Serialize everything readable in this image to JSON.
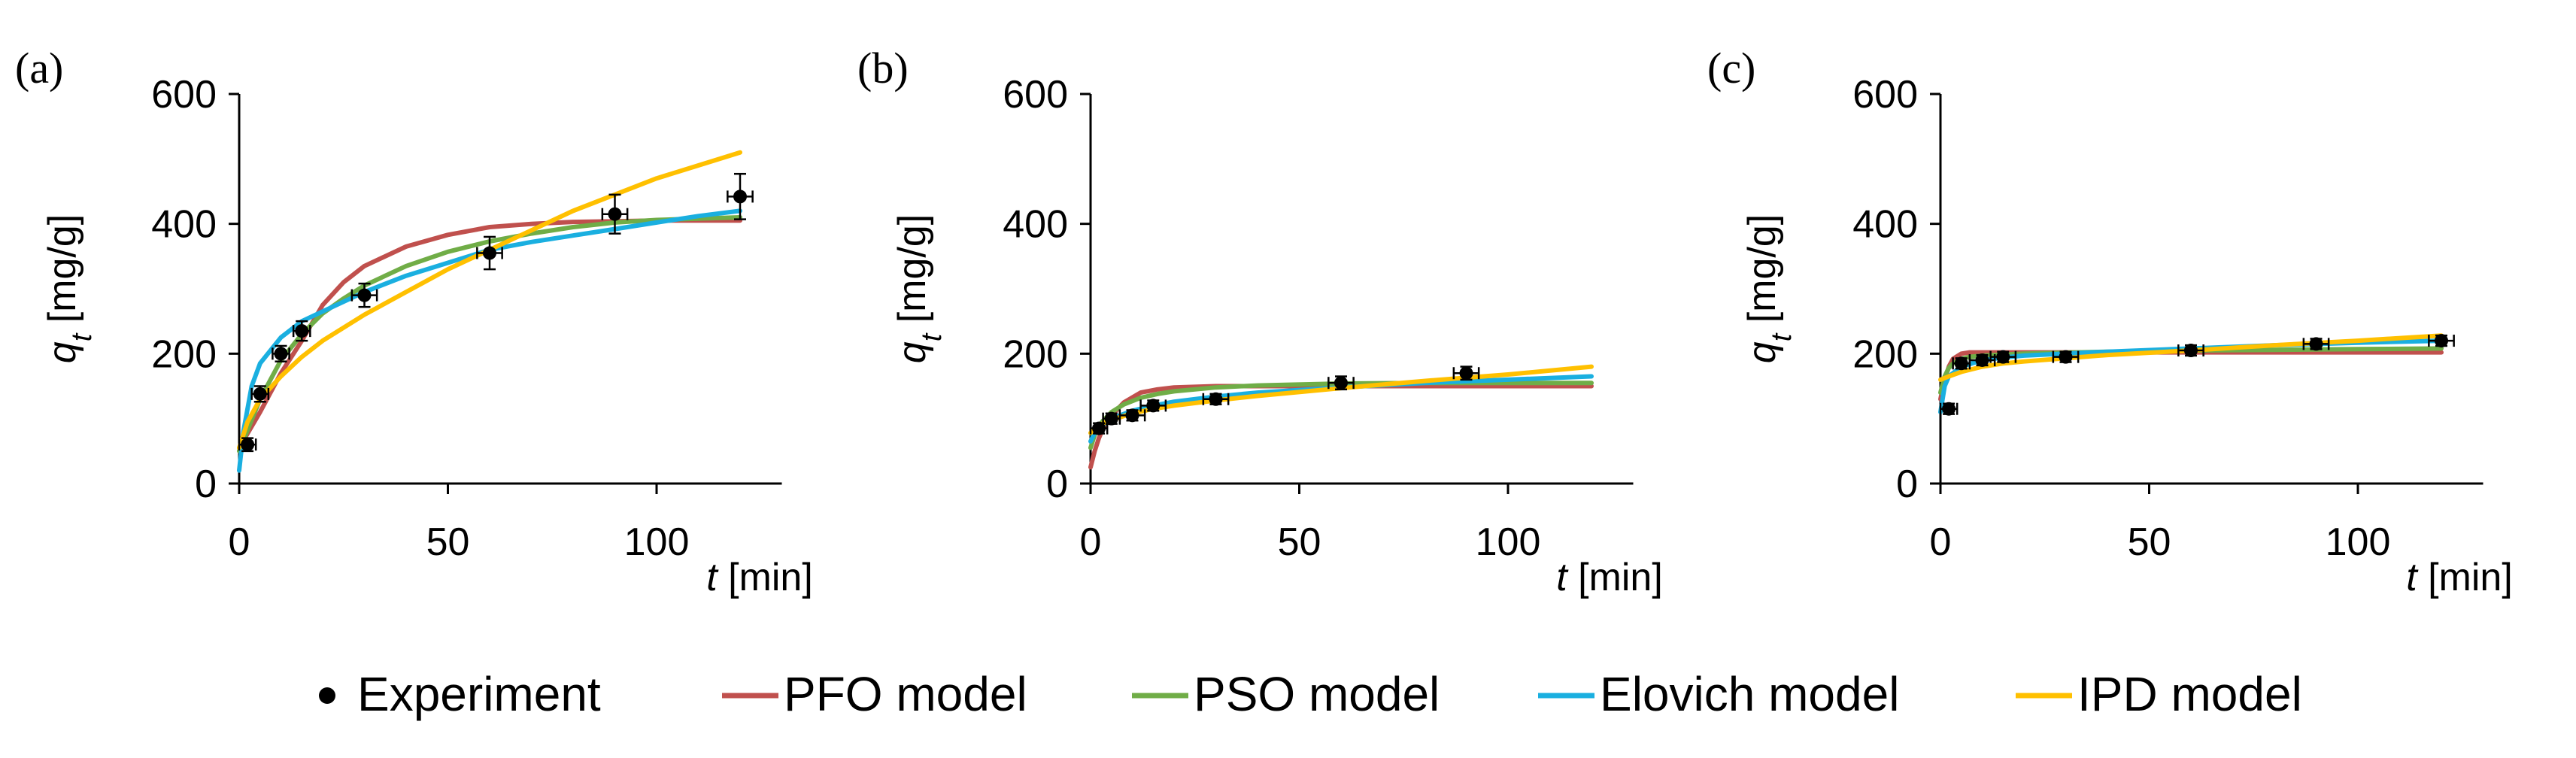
{
  "colors": {
    "Experiment": "#000000",
    "PFO model": "#C0504D",
    "PSO model": "#70AD47",
    "Elovich model": "#1AAFE0",
    "IPD model": "#FFC000"
  },
  "legend": {
    "placement": "bottom-center",
    "entries": [
      "Experiment",
      "PFO model",
      "PSO model",
      "Elovich model",
      "IPD model"
    ]
  },
  "chart_data": [
    {
      "type": "scatter",
      "panel_label": "(a)",
      "xlabel": {
        "var": "t",
        "unit": " [min]"
      },
      "ylabel": {
        "var": "q",
        "sub": "t",
        "unit": " [mg/g]"
      },
      "xlim": [
        0,
        130
      ],
      "ylim": [
        0,
        600
      ],
      "xticks": [
        0,
        50,
        100
      ],
      "yticks": [
        0,
        200,
        400,
        600
      ],
      "grid": false,
      "experiment": {
        "x": [
          2,
          5,
          10,
          15,
          30,
          60,
          90,
          120
        ],
        "y": [
          60,
          138,
          200,
          235,
          290,
          355,
          415,
          442
        ],
        "yerr": [
          10,
          12,
          12,
          15,
          18,
          25,
          30,
          35
        ],
        "xerr": [
          2,
          2,
          2,
          2,
          3,
          3,
          3,
          3
        ]
      },
      "series": [
        {
          "name": "PFO model",
          "x": [
            0,
            5,
            10,
            15,
            20,
            25,
            30,
            40,
            50,
            60,
            70,
            80,
            90,
            100,
            110,
            120
          ],
          "y": [
            55,
            110,
            170,
            220,
            275,
            310,
            335,
            365,
            383,
            395,
            400,
            403,
            404,
            405,
            405,
            405
          ]
        },
        {
          "name": "PSO model",
          "x": [
            0,
            5,
            10,
            15,
            20,
            25,
            30,
            40,
            50,
            60,
            70,
            80,
            90,
            100,
            110,
            120
          ],
          "y": [
            50,
            130,
            190,
            230,
            262,
            285,
            305,
            335,
            357,
            373,
            385,
            395,
            402,
            406,
            408,
            410
          ]
        },
        {
          "name": "Elovich model",
          "x": [
            0,
            1,
            3,
            5,
            10,
            15,
            20,
            30,
            40,
            50,
            60,
            70,
            80,
            90,
            100,
            110,
            120
          ],
          "y": [
            20,
            80,
            150,
            185,
            225,
            250,
            265,
            295,
            320,
            340,
            360,
            372,
            382,
            392,
            402,
            412,
            420
          ]
        },
        {
          "name": "IPD model",
          "x": [
            0,
            2,
            5,
            10,
            15,
            20,
            30,
            40,
            50,
            60,
            70,
            80,
            90,
            100,
            110,
            120
          ],
          "y": [
            55,
            95,
            130,
            165,
            195,
            220,
            260,
            295,
            330,
            360,
            390,
            420,
            445,
            470,
            490,
            510
          ]
        }
      ]
    },
    {
      "type": "scatter",
      "panel_label": "(b)",
      "xlabel": {
        "var": "t",
        "unit": " [min]"
      },
      "ylabel": {
        "var": "q",
        "sub": "t",
        "unit": " [mg/g]"
      },
      "xlim": [
        0,
        130
      ],
      "ylim": [
        0,
        600
      ],
      "xticks": [
        0,
        50,
        100
      ],
      "yticks": [
        0,
        200,
        400,
        600
      ],
      "grid": false,
      "experiment": {
        "x": [
          2,
          5,
          10,
          15,
          30,
          60,
          90
        ],
        "y": [
          85,
          100,
          105,
          120,
          130,
          155,
          170
        ],
        "yerr": [
          8,
          8,
          8,
          8,
          8,
          10,
          10
        ],
        "xerr": [
          2,
          2,
          3,
          3,
          3,
          3,
          3
        ]
      },
      "series": [
        {
          "name": "PFO model",
          "x": [
            0,
            1,
            2,
            3,
            5,
            8,
            12,
            16,
            20,
            30,
            40,
            60,
            80,
            100,
            120
          ],
          "y": [
            25,
            50,
            70,
            85,
            105,
            125,
            140,
            145,
            148,
            150,
            150,
            150,
            150,
            150,
            150
          ]
        },
        {
          "name": "PSO model",
          "x": [
            0,
            1,
            2,
            3,
            5,
            8,
            12,
            16,
            20,
            30,
            40,
            60,
            80,
            100,
            120
          ],
          "y": [
            55,
            75,
            88,
            97,
            110,
            122,
            132,
            138,
            142,
            148,
            151,
            154,
            155,
            155,
            155
          ]
        },
        {
          "name": "Elovich model",
          "x": [
            0,
            1,
            2,
            5,
            10,
            15,
            20,
            30,
            40,
            60,
            80,
            100,
            120
          ],
          "y": [
            65,
            78,
            86,
            100,
            112,
            120,
            126,
            134,
            140,
            148,
            155,
            160,
            165
          ]
        },
        {
          "name": "IPD model",
          "x": [
            0,
            2,
            5,
            10,
            15,
            20,
            30,
            40,
            60,
            80,
            100,
            120
          ],
          "y": [
            78,
            90,
            98,
            108,
            115,
            120,
            128,
            135,
            147,
            158,
            168,
            180
          ]
        }
      ]
    },
    {
      "type": "scatter",
      "panel_label": "(c)",
      "xlabel": {
        "var": "t",
        "unit": " [min]"
      },
      "ylabel": {
        "var": "q",
        "sub": "t",
        "unit": " [mg/g]"
      },
      "xlim": [
        0,
        130
      ],
      "ylim": [
        0,
        600
      ],
      "xticks": [
        0,
        50,
        100
      ],
      "yticks": [
        0,
        200,
        400,
        600
      ],
      "grid": false,
      "experiment": {
        "x": [
          2,
          5,
          10,
          15,
          30,
          60,
          90,
          120
        ],
        "y": [
          115,
          185,
          190,
          195,
          195,
          205,
          215,
          220
        ],
        "yerr": [
          8,
          8,
          8,
          8,
          8,
          8,
          8,
          8
        ],
        "xerr": [
          2,
          2,
          3,
          3,
          3,
          3,
          3,
          3
        ]
      },
      "series": [
        {
          "name": "PFO model",
          "x": [
            0,
            1,
            2,
            3,
            5,
            7,
            10,
            20,
            40,
            60,
            80,
            100,
            120
          ],
          "y": [
            130,
            160,
            180,
            192,
            200,
            202,
            202,
            202,
            202,
            202,
            202,
            202,
            202
          ]
        },
        {
          "name": "PSO model",
          "x": [
            0,
            1,
            2,
            3,
            5,
            7,
            10,
            20,
            40,
            60,
            80,
            100,
            120
          ],
          "y": [
            140,
            165,
            178,
            185,
            192,
            195,
            197,
            200,
            203,
            205,
            206,
            207,
            208
          ]
        },
        {
          "name": "Elovich model",
          "x": [
            0,
            1,
            2,
            5,
            10,
            15,
            20,
            30,
            40,
            60,
            80,
            100,
            120
          ],
          "y": [
            110,
            150,
            165,
            180,
            190,
            194,
            197,
            200,
            203,
            208,
            213,
            217,
            220
          ]
        },
        {
          "name": "IPD model",
          "x": [
            0,
            2,
            5,
            10,
            15,
            20,
            30,
            40,
            60,
            80,
            100,
            120
          ],
          "y": [
            160,
            165,
            172,
            180,
            185,
            188,
            193,
            198,
            205,
            213,
            220,
            228
          ]
        }
      ]
    }
  ]
}
